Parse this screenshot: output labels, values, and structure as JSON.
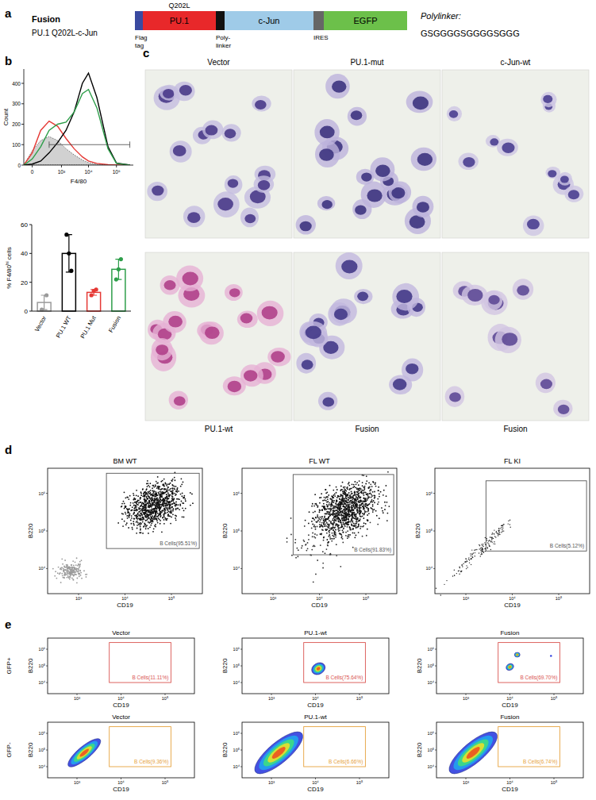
{
  "panel_labels": [
    "a",
    "b",
    "c",
    "d",
    "e"
  ],
  "construct": {
    "title": "Fusion",
    "subtitle": "PU.1 Q202L-c-Jun",
    "mutation": "Q202L",
    "segments": [
      {
        "color": "#3a4aa0",
        "caption": [
          "Flag",
          "tag"
        ]
      },
      {
        "color": "#e8282a",
        "label": "PU.1"
      },
      {
        "color": "#111111",
        "caption": [
          "Poly-",
          "linker"
        ]
      },
      {
        "color": "#9fcbe8",
        "label": "c-Jun"
      },
      {
        "color": "#666666",
        "caption": [
          "IRES"
        ]
      },
      {
        "color": "#6cc04a",
        "label": "EGFP"
      }
    ],
    "polylinker_label": "Polylinker:",
    "polylinker_seq": "GSGGGGSGGGGSGGG"
  },
  "chart_data": [
    {
      "type": "line",
      "x_label": "F4/80",
      "y_label": "Count",
      "log": "x",
      "xlim": [
        -100,
        400000
      ],
      "ylim": [
        0,
        470
      ],
      "xticks": [
        0,
        {
          "value": 1000,
          "label": "10³"
        },
        {
          "value": 10000,
          "label": "10⁴"
        },
        {
          "value": 100000,
          "label": "10⁵"
        }
      ],
      "yticks": [
        0,
        100,
        200,
        300,
        400
      ],
      "x": [
        -100,
        0,
        100,
        300,
        700,
        1500,
        3000,
        6000,
        10000,
        20000,
        50000,
        100000,
        300000
      ],
      "series": [
        {
          "type": "area",
          "color": "#9a9a9a",
          "line_style": "dotted",
          "values": [
            0,
            70,
            120,
            140,
            120,
            80,
            50,
            25,
            12,
            4,
            1,
            0,
            0
          ]
        },
        {
          "color": "#e53935",
          "values": [
            0,
            60,
            170,
            215,
            190,
            130,
            80,
            40,
            20,
            8,
            2,
            0,
            0
          ]
        },
        {
          "color": "#000000",
          "values": [
            0,
            5,
            20,
            60,
            110,
            170,
            260,
            400,
            450,
            330,
            90,
            10,
            0
          ]
        },
        {
          "color": "#2e9e4a",
          "values": [
            0,
            30,
            90,
            170,
            200,
            210,
            260,
            350,
            370,
            280,
            80,
            8,
            0
          ]
        }
      ],
      "gate": {
        "x": [
          300,
          300000
        ],
        "y": 100
      }
    },
    {
      "type": "bar",
      "y_label": {
        "main": "% F4/80",
        "sup": "hi",
        "end": " cells"
      },
      "categories": [
        "Vector",
        "PU.1 WT",
        "PU.1 Mut",
        "Fusion"
      ],
      "values": [
        6,
        40,
        13,
        29
      ],
      "errors": [
        5,
        13,
        2,
        7
      ],
      "points": [
        [
          1,
          11
        ],
        [
          53,
          40,
          28
        ],
        [
          11,
          14,
          15
        ],
        [
          22,
          29,
          36
        ]
      ],
      "colors": [
        "#9a9a9a",
        "#000000",
        "#e53935",
        "#2e9e4a"
      ],
      "ylim": [
        0,
        60
      ],
      "yticks": [
        0,
        20,
        40,
        60
      ]
    }
  ],
  "micrographs": {
    "top_labels": [
      "Vector",
      "PU.1-mut",
      "c-Jun-wt"
    ],
    "bottom_labels": [
      "PU.1-wt",
      "Fusion",
      "Fusion"
    ]
  },
  "flow_d": {
    "x_label": "CD19",
    "y_label": "B220",
    "color": "#555555",
    "x_ticks": [
      "10³",
      "10⁴",
      "10⁵"
    ],
    "y_ticks": [
      "10⁴",
      "10⁵",
      "10⁶"
    ],
    "plots": [
      {
        "title": "BM WT",
        "gate": "B Cells(95.51%)"
      },
      {
        "title": "FL WT",
        "gate": "B Cells(91.83%)"
      },
      {
        "title": "FL KI",
        "gate": "B Cells(5.12%)"
      }
    ]
  },
  "flow_e": {
    "x_label": "CD19",
    "y_label": "B220",
    "x_ticks": [
      "10³",
      "10⁴",
      "10⁵"
    ],
    "y_ticks": [
      "10⁴",
      "10⁵",
      "10⁶"
    ],
    "columns": [
      "Vector",
      "PU.1-wt",
      "Fusion"
    ],
    "rows": [
      {
        "label": "GFP+",
        "color": "#d9534f",
        "gates": [
          "B Cells(11.11%)",
          "B Cells(75.64%)",
          "B Cells(69.70%)"
        ]
      },
      {
        "label": "GFP-",
        "color": "#e6a23c",
        "gates": [
          "B Cells(9.36%)",
          "B Cells(6.66%)",
          "B Cells(6.74%)"
        ]
      }
    ]
  }
}
